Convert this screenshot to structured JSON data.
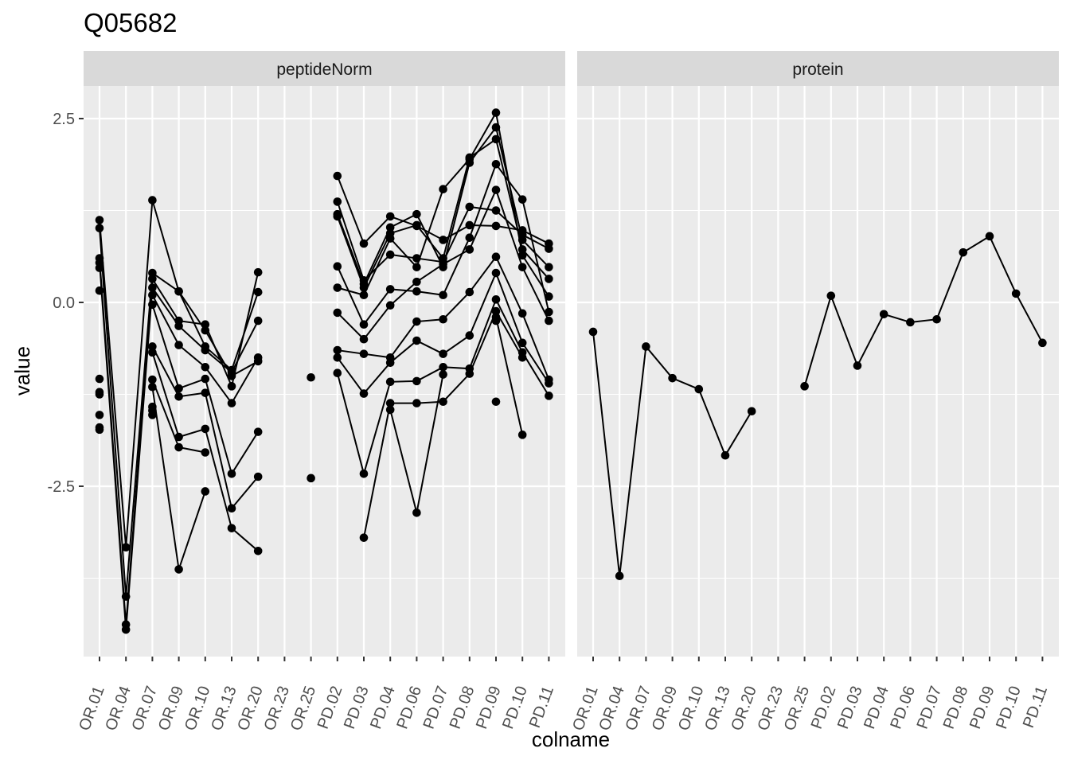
{
  "chart_data": {
    "type": "line",
    "title": "Q05682",
    "xlabel": "colname",
    "ylabel": "value",
    "x": [
      "OR.01",
      "OR.04",
      "OR.07",
      "OR.09",
      "OR.10",
      "OR.13",
      "OR.20",
      "OR.23",
      "OR.25",
      "PD.02",
      "PD.03",
      "PD.04",
      "PD.06",
      "PD.07",
      "PD.08",
      "PD.09",
      "PD.10",
      "PD.11"
    ],
    "yticks": [
      2.5,
      0.0,
      -2.5
    ],
    "ytick_labels": [
      "2.5",
      "0.0",
      "-2.5"
    ],
    "ylim": [
      -4.8,
      2.9
    ],
    "grid": true,
    "panels": [
      {
        "label": "peptideNorm",
        "series": [
          {
            "values": [
              1.12,
              -3.33,
              1.39,
              0.15,
              -0.38,
              -1.0,
              -0.8,
              null,
              null,
              1.72,
              0.8,
              1.17,
              1.04,
              0.85,
              1.05,
              1.04,
              0.98,
              0.8
            ]
          },
          {
            "values": [
              1.01,
              -4.0,
              0.4,
              0.15,
              -0.6,
              -0.92,
              0.14,
              null,
              null,
              1.37,
              0.3,
              0.65,
              0.6,
              0.55,
              1.3,
              1.25,
              0.92,
              0.73
            ]
          },
          {
            "values": [
              0.6,
              -4.38,
              0.32,
              -0.25,
              -0.3,
              -1.14,
              0.41,
              null,
              null,
              1.2,
              0.25,
              1.02,
              1.2,
              0.48,
              1.9,
              2.38,
              0.85,
              0.48
            ]
          },
          {
            "values": [
              0.54,
              -4.45,
              0.2,
              -0.32,
              -0.65,
              -0.95,
              -0.25,
              null,
              null,
              1.17,
              0.2,
              0.94,
              1.05,
              0.6,
              1.97,
              2.22,
              0.72,
              0.32
            ]
          },
          {
            "values": [
              0.47,
              null,
              0.1,
              -0.58,
              -0.88,
              -1.37,
              -0.75,
              null,
              null,
              0.2,
              0.1,
              0.87,
              0.48,
              1.54,
              1.95,
              2.58,
              0.64,
              0.08
            ]
          },
          {
            "values": [
              0.16,
              null,
              -0.03,
              -1.17,
              -1.04,
              -2.33,
              -1.76,
              null,
              null,
              0.49,
              -0.3,
              0.18,
              0.15,
              0.1,
              0.88,
              1.88,
              1.4,
              -0.13
            ]
          },
          {
            "values": [
              -1.04,
              null,
              -0.6,
              -1.28,
              -1.23,
              -2.8,
              -2.37,
              null,
              null,
              -0.14,
              -0.5,
              -0.04,
              0.28,
              0.52,
              0.72,
              1.53,
              0.48,
              -0.25
            ]
          },
          {
            "values": [
              -1.25,
              null,
              -0.68,
              -1.83,
              -1.72,
              -3.07,
              -3.38,
              null,
              null,
              -0.65,
              -0.7,
              -0.75,
              -0.26,
              -0.23,
              0.14,
              0.62,
              -0.15,
              -1.05
            ]
          },
          {
            "values": [
              -1.22,
              null,
              -1.05,
              -1.97,
              -2.04,
              null,
              null,
              null,
              null,
              -0.75,
              -1.24,
              -0.82,
              -0.52,
              -0.7,
              -0.45,
              0.4,
              -0.55,
              -1.1
            ]
          },
          {
            "values": [
              -1.53,
              null,
              -1.15,
              -3.63,
              -2.57,
              null,
              null,
              null,
              null,
              -0.96,
              -2.33,
              -1.08,
              -1.07,
              -0.88,
              -0.9,
              0.04,
              -0.68,
              -1.27
            ]
          },
          {
            "values": [
              -1.7,
              null,
              -1.42,
              null,
              null,
              null,
              null,
              null,
              null,
              null,
              -3.2,
              -1.37,
              -1.37,
              -1.35,
              -0.97,
              -0.12,
              -0.75,
              null
            ]
          },
          {
            "values": [
              -1.73,
              null,
              -1.47,
              null,
              null,
              null,
              null,
              null,
              null,
              null,
              null,
              -1.46,
              -2.86,
              -0.98,
              null,
              -0.2,
              -1.8,
              null
            ]
          },
          {
            "values": [
              null,
              null,
              -1.53,
              null,
              null,
              null,
              null,
              null,
              null,
              null,
              null,
              null,
              null,
              null,
              null,
              -0.25,
              null,
              null
            ]
          },
          {
            "values": [
              null,
              null,
              null,
              null,
              null,
              null,
              null,
              null,
              -1.02,
              null,
              null,
              null,
              null,
              null,
              null,
              -1.35,
              null,
              null
            ]
          },
          {
            "values": [
              null,
              null,
              null,
              null,
              null,
              null,
              null,
              null,
              -2.39,
              null,
              null,
              null,
              null,
              null,
              null,
              null,
              null,
              null
            ]
          }
        ]
      },
      {
        "label": "protein",
        "series": [
          {
            "values": [
              -0.4,
              -3.72,
              -0.6,
              -1.03,
              -1.18,
              -2.08,
              -1.48,
              null,
              -1.14,
              0.09,
              -0.86,
              -0.16,
              -0.27,
              -0.23,
              0.68,
              0.9,
              0.12,
              -0.55
            ]
          }
        ]
      }
    ]
  },
  "style": {
    "panel_bg": "#ebebeb",
    "strip_bg": "#d9d9d9",
    "grid_color": "#ffffff",
    "line_color": "#000000",
    "point_color": "#000000",
    "tick_color": "#333333"
  }
}
